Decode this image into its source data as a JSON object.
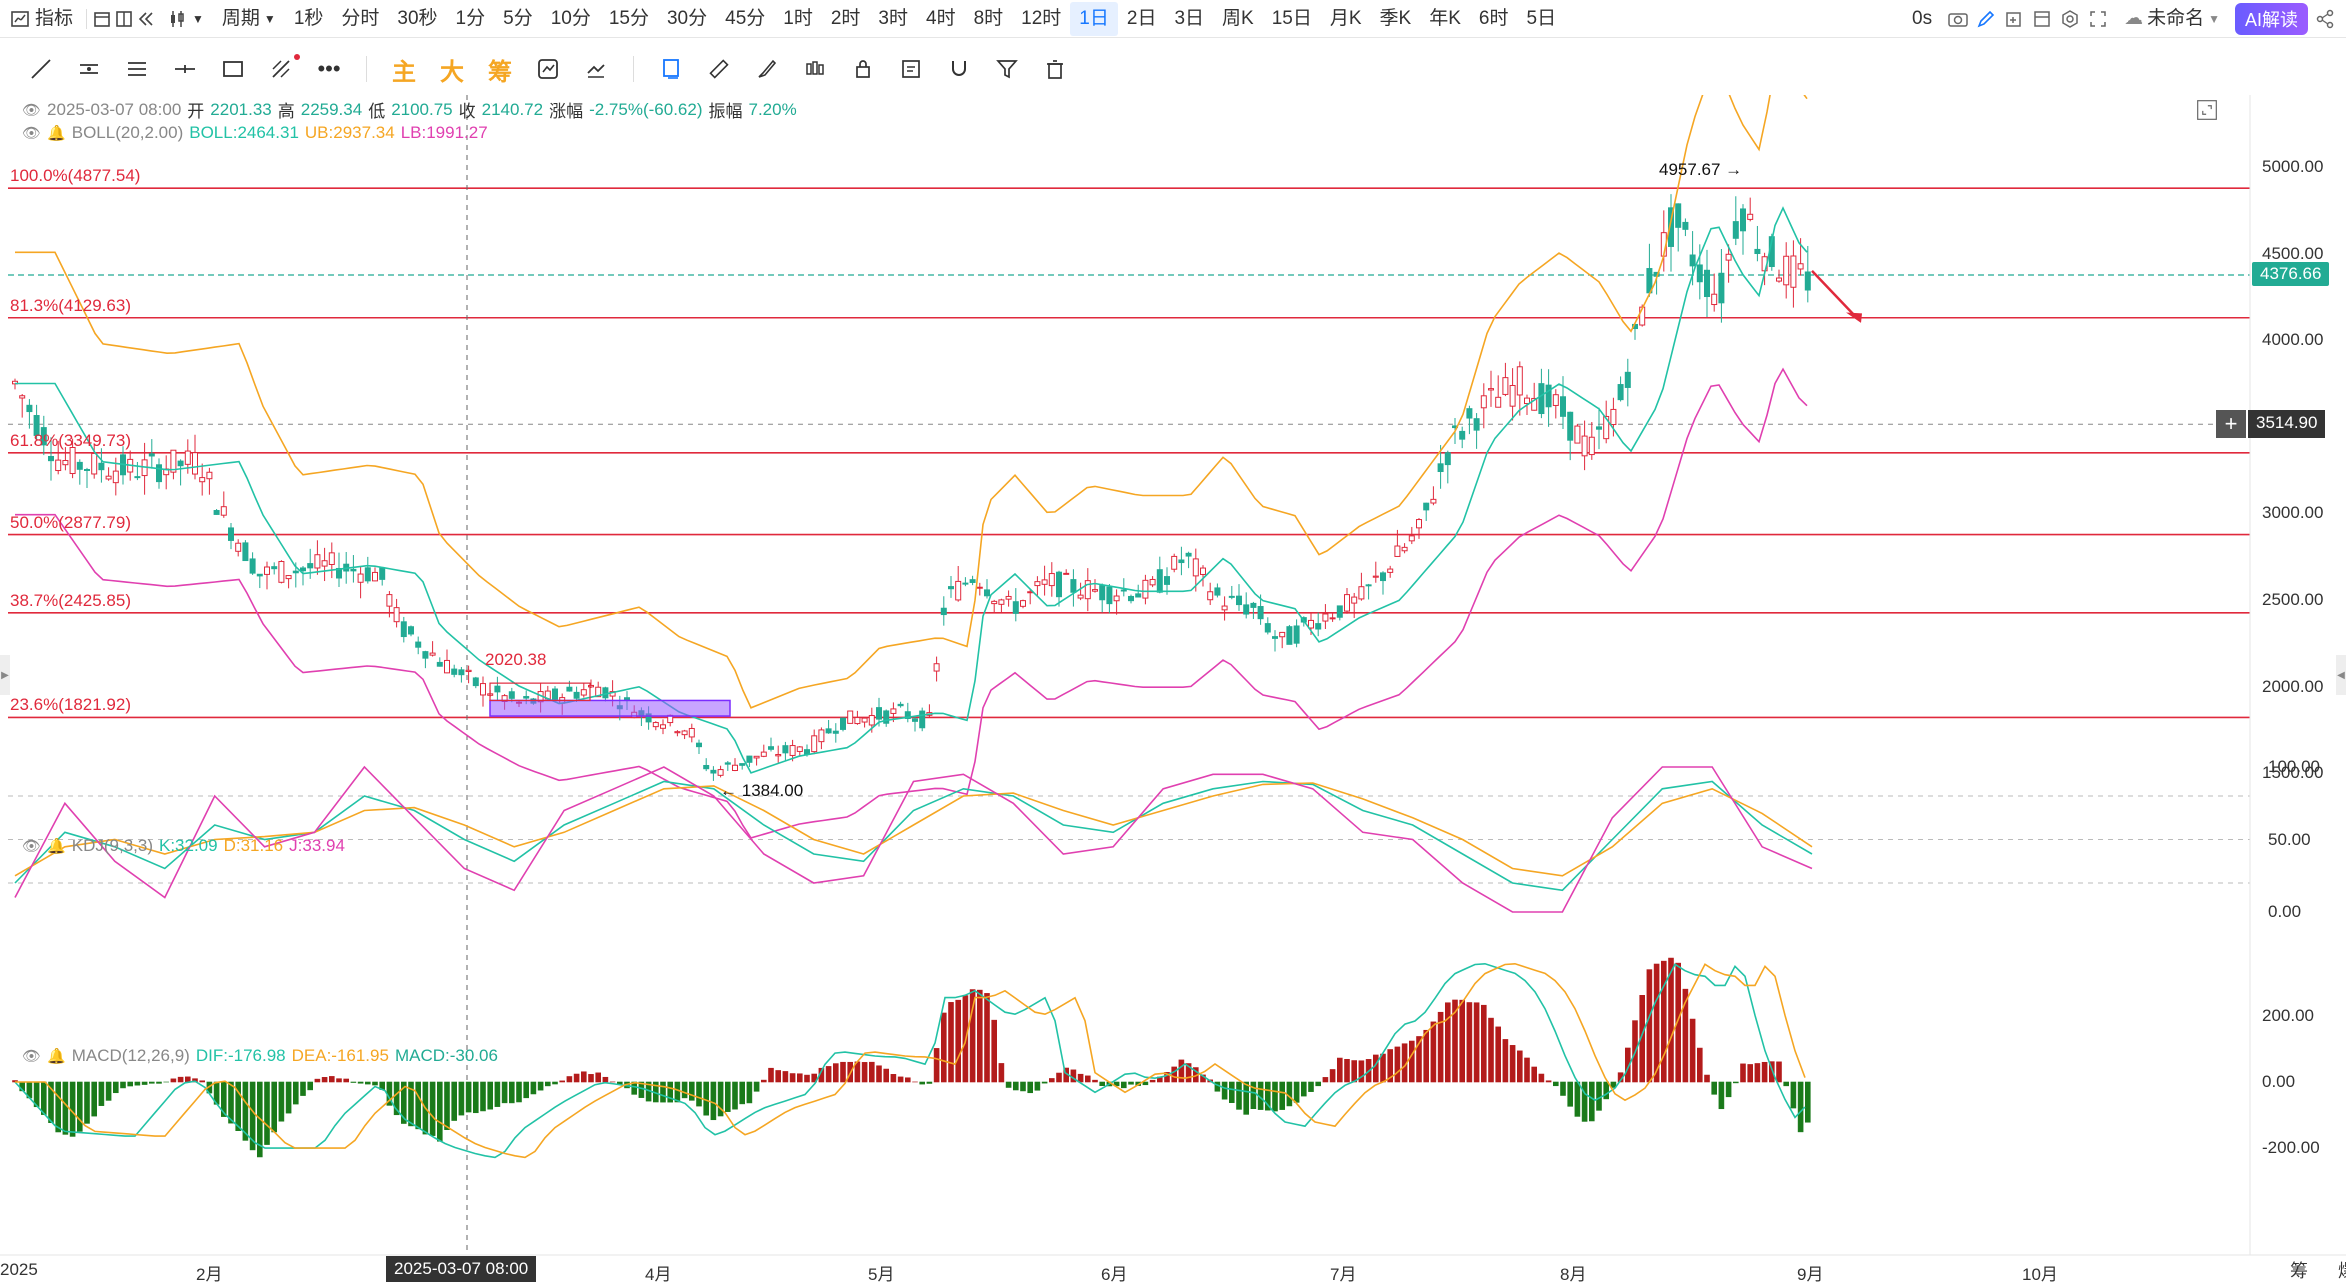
{
  "topbar": {
    "indicator": "指标",
    "period_label": "周期",
    "periods": [
      "1秒",
      "分时",
      "30秒",
      "1分",
      "5分",
      "10分",
      "15分",
      "30分",
      "45分",
      "1时",
      "2时",
      "3时",
      "4时",
      "8时",
      "12时",
      "1日",
      "2日",
      "3日",
      "周K",
      "15日",
      "月K",
      "季K",
      "年K",
      "6时",
      "5日"
    ],
    "active_period": "1日",
    "timer": "0s",
    "layout_name": "未命名",
    "ai_button": "AI解读"
  },
  "toolbar": {
    "main_label": "主",
    "big_label": "大",
    "chip_label": "筹"
  },
  "header": {
    "date": "2025-03-07 08:00",
    "open_label": "开",
    "open": "2201.33",
    "high_label": "高",
    "high": "2259.34",
    "low_label": "低",
    "low": "2100.75",
    "close_label": "收",
    "close": "2140.72",
    "change_label": "涨幅",
    "change": "-2.75%(-60.62)",
    "amp_label": "振幅",
    "amp": "7.20%"
  },
  "boll": {
    "name": "BOLL(20,2.00)",
    "boll": "BOLL:2464.31",
    "ub": "UB:2937.34",
    "lb": "LB:1991.27"
  },
  "kdj": {
    "name": "KDJ(9,3,3)",
    "k": "K:32.09",
    "d": "D:31.16",
    "j": "J:33.94"
  },
  "macd": {
    "name": "MACD(12,26,9)",
    "dif": "DIF:-176.98",
    "dea": "DEA:-161.95",
    "macd": "MACD:-30.06"
  },
  "fib_levels": [
    {
      "label": "100.0%(4877.54)",
      "price": 4877.54
    },
    {
      "label": "81.3%(4129.63)",
      "price": 4129.63
    },
    {
      "label": "61.8%(3349.73)",
      "price": 3349.73
    },
    {
      "label": "50.0%(2877.79)",
      "price": 2877.79
    },
    {
      "label": "38.7%(2425.85)",
      "price": 2425.85
    },
    {
      "label": "23.6%(1821.92)",
      "price": 1821.92
    }
  ],
  "price_axis": [
    "5000.00",
    "4500.00",
    "4000.00",
    "3500.00",
    "3000.00",
    "2500.00",
    "2000.00",
    "1500.00"
  ],
  "kdj_axis": [
    "100.00",
    "50.00",
    "0.00"
  ],
  "macd_axis": [
    "200.00",
    "0.00",
    "-200.00"
  ],
  "x_axis": [
    "2025",
    "2月",
    "4月",
    "5月",
    "6月",
    "7月",
    "8月",
    "9月",
    "10月"
  ],
  "cursor_date": "2025-03-07 08:00",
  "last_price": "4376.66",
  "cursor_price": "3514.90",
  "annotations": {
    "high_mark": "4957.67",
    "low_mark": "1384.00",
    "box_mark": "2020.38"
  },
  "bottom_right": [
    "筹",
    "爆"
  ],
  "colors": {
    "up": "#e0293c",
    "down": "#22ab94",
    "boll_mid": "#22c2a6",
    "boll_up": "#f5a623",
    "boll_lo": "#e040b0",
    "accent": "#1677ff"
  },
  "chart_data": {
    "type": "candlestick",
    "title": "",
    "x_range": [
      "2025-01",
      "2025-10"
    ],
    "y_range": [
      1200,
      5200
    ],
    "series": [
      {
        "name": "K",
        "values": [
          20,
          55,
          45,
          30,
          60,
          50,
          55,
          80,
          70,
          50,
          35,
          60,
          75,
          90,
          85,
          60,
          40,
          35,
          70,
          85,
          80,
          60,
          55,
          75,
          85,
          90,
          88,
          70,
          60,
          40,
          20,
          15,
          50,
          85,
          90,
          60,
          40
        ]
      },
      {
        "name": "D",
        "values": [
          25,
          45,
          50,
          40,
          50,
          52,
          55,
          70,
          72,
          60,
          45,
          55,
          70,
          85,
          87,
          70,
          50,
          40,
          60,
          80,
          82,
          70,
          60,
          70,
          80,
          88,
          89,
          78,
          65,
          50,
          30,
          25,
          45,
          75,
          85,
          68,
          45
        ]
      },
      {
        "name": "J",
        "values": [
          10,
          75,
          35,
          10,
          80,
          45,
          55,
          100,
          65,
          30,
          15,
          70,
          85,
          100,
          80,
          40,
          20,
          25,
          90,
          95,
          75,
          40,
          45,
          85,
          95,
          95,
          85,
          55,
          50,
          20,
          0,
          0,
          65,
          100,
          100,
          45,
          30
        ]
      }
    ]
  }
}
